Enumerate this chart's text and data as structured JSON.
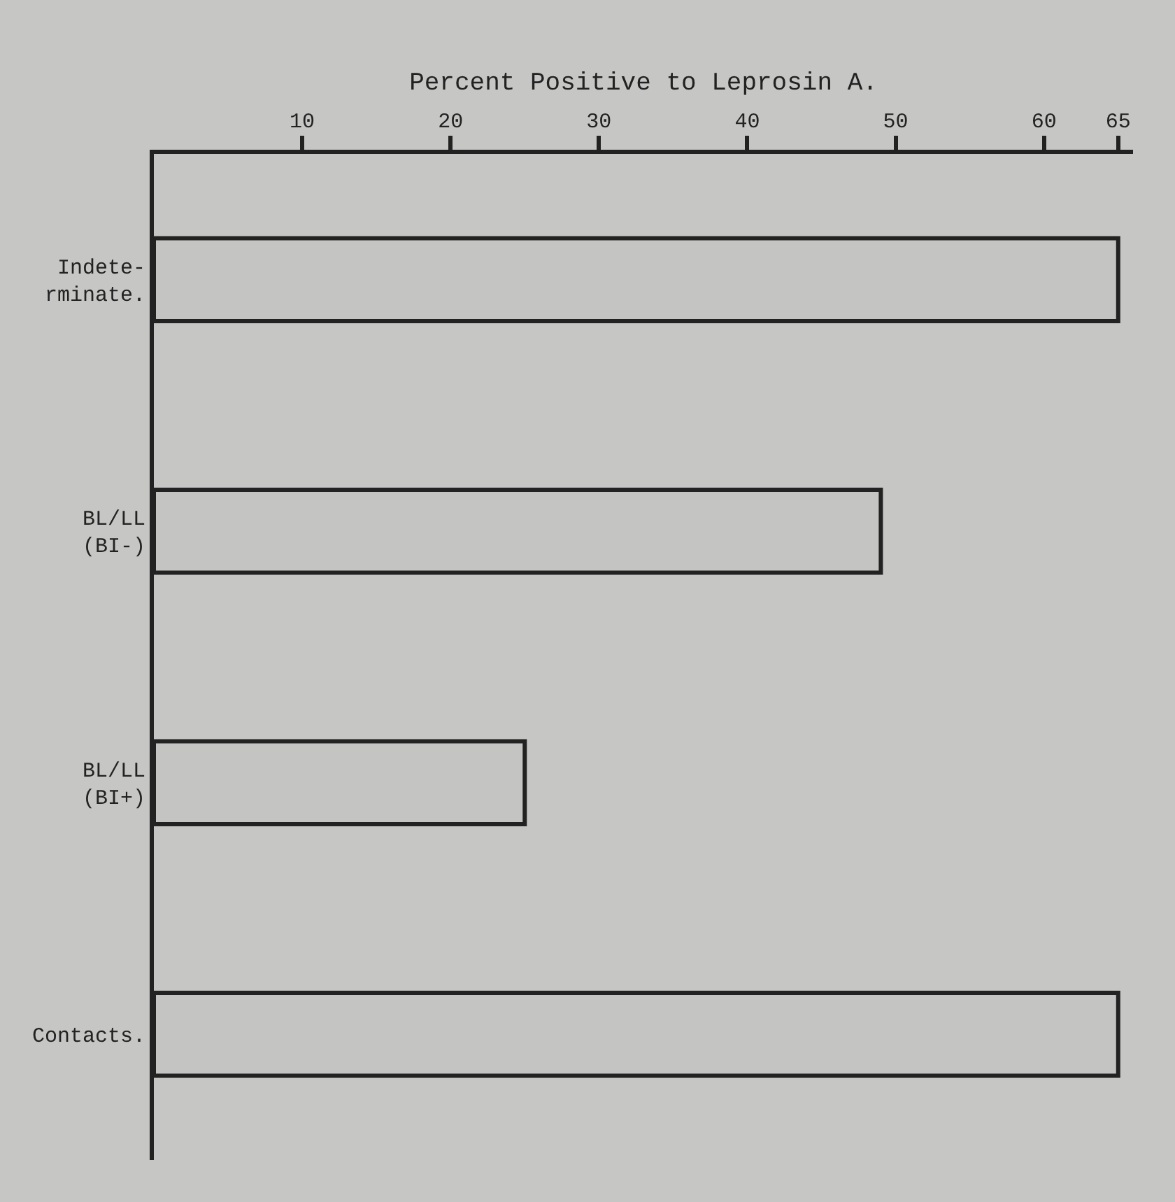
{
  "chart_data": {
    "type": "bar",
    "orientation": "horizontal",
    "xlabel": "Percent Positive to Leprosin A.",
    "categories": [
      "Indete-\nrminate.",
      "BL/LL\n(BI-)",
      "BL/LL\n(BI+)",
      "Contacts."
    ],
    "values": [
      65,
      49,
      25,
      65
    ],
    "color": "#c4c4c2",
    "xlim": [
      0,
      66
    ],
    "xticks": [
      10,
      20,
      30,
      40,
      50,
      60,
      65
    ],
    "grid": false
  }
}
